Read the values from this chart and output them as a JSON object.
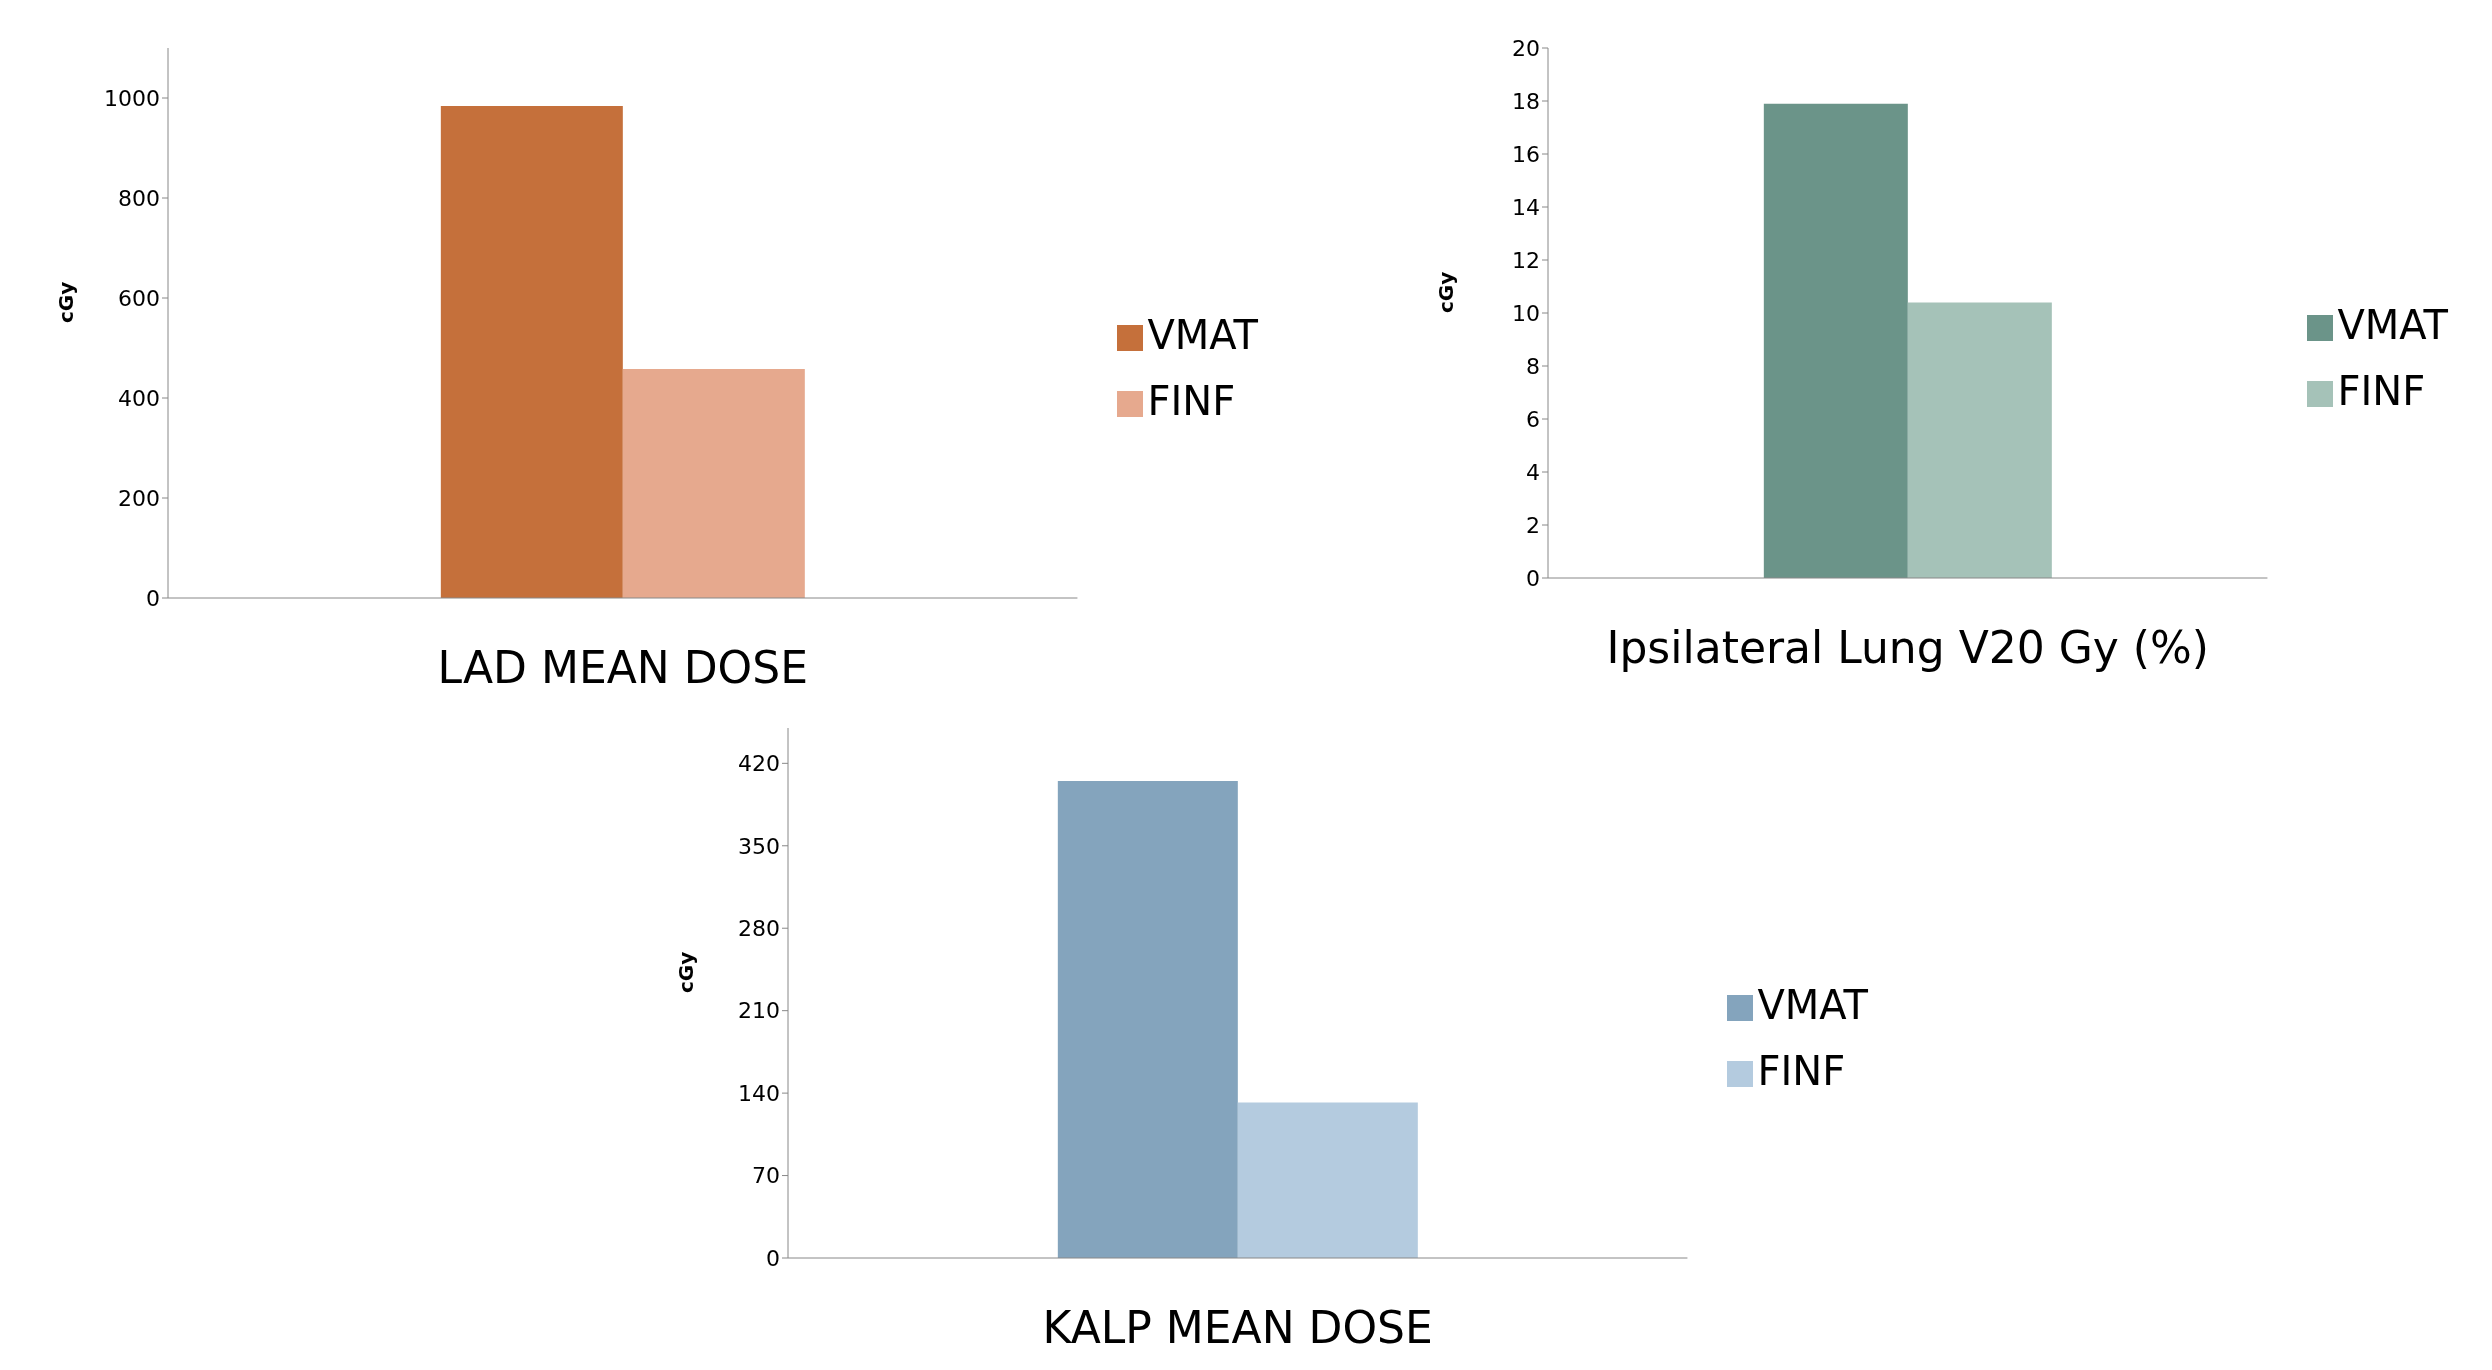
{
  "chart_data": [
    {
      "type": "bar",
      "xlabel": "LAD MEAN DOSE",
      "ylabel": "cGy",
      "categories": [
        null
      ],
      "legend": "right",
      "ylim": [
        0,
        1100
      ],
      "yticks": [
        0,
        200,
        400,
        600,
        800,
        1000
      ],
      "series": [
        {
          "name": "VMAT",
          "color": "#c5703b",
          "values": [
            984
          ]
        },
        {
          "name": "FINF",
          "color": "#e6a98e",
          "values": [
            458
          ]
        }
      ]
    },
    {
      "type": "bar",
      "xlabel": "Ipsilateral Lung V20 Gy (%)",
      "ylabel": "cGy",
      "categories": [
        null
      ],
      "legend": "right",
      "ylim": [
        0,
        20
      ],
      "yticks": [
        0,
        2,
        4,
        6,
        8,
        10,
        12,
        14,
        16,
        18,
        20
      ],
      "series": [
        {
          "name": "VMAT",
          "color": "#6b9489",
          "values": [
            17.9
          ]
        },
        {
          "name": "FINF",
          "color": "#a5c2b8",
          "values": [
            10.4
          ]
        }
      ]
    },
    {
      "type": "bar",
      "xlabel": "KALP MEAN DOSE",
      "ylabel": "cGy",
      "categories": [
        null
      ],
      "legend": "right",
      "ylim": [
        0,
        450
      ],
      "yticks": [
        0,
        70,
        140,
        210,
        280,
        350,
        420
      ],
      "series": [
        {
          "name": "VMAT",
          "color": "#84a4bd",
          "values": [
            405
          ]
        },
        {
          "name": "FINF",
          "color": "#b4cbdf",
          "values": [
            132
          ]
        }
      ]
    }
  ]
}
